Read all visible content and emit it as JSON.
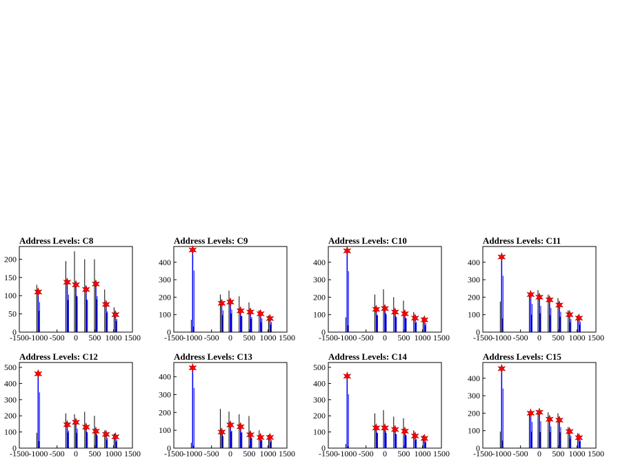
{
  "colors": {
    "frame": "#000000",
    "hist": "#0000ff",
    "overlay": "#000000",
    "marker": "#ff0000",
    "marker_edge": "#aa0000"
  },
  "chart_data": [
    {
      "type": "bar",
      "title": "Address Levels: C8",
      "xlim": [
        -1500,
        1500
      ],
      "ylim": [
        0,
        235
      ],
      "xticks": [
        "-1500",
        "-1000",
        "-500",
        "0",
        "500",
        "1000",
        "1500"
      ],
      "yticks": [
        0,
        50,
        100,
        150,
        200
      ],
      "grid": false,
      "peaks": [
        {
          "x": -1000,
          "y": 110
        },
        {
          "x": -230,
          "y": 137
        },
        {
          "x": 0,
          "y": 130
        },
        {
          "x": 270,
          "y": 117
        },
        {
          "x": 530,
          "y": 132
        },
        {
          "x": 800,
          "y": 76
        },
        {
          "x": 1050,
          "y": 48
        }
      ],
      "overlay_lines": [
        {
          "x": -1000,
          "y": 130
        },
        {
          "x": -230,
          "y": 195
        },
        {
          "x": 0,
          "y": 222
        },
        {
          "x": 270,
          "y": 200
        },
        {
          "x": 530,
          "y": 200
        },
        {
          "x": 800,
          "y": 117
        },
        {
          "x": 1050,
          "y": 68
        }
      ]
    },
    {
      "type": "bar",
      "title": "Address Levels: C9",
      "xlim": [
        -1500,
        1500
      ],
      "ylim": [
        0,
        490
      ],
      "xticks": [
        "-1500",
        "-1000",
        "-500",
        "0",
        "500",
        "1000",
        "1500"
      ],
      "yticks": [
        0,
        100,
        200,
        300,
        400
      ],
      "grid": false,
      "peaks": [
        {
          "x": -1000,
          "y": 470
        },
        {
          "x": -230,
          "y": 165
        },
        {
          "x": 0,
          "y": 172
        },
        {
          "x": 270,
          "y": 122
        },
        {
          "x": 530,
          "y": 115
        },
        {
          "x": 800,
          "y": 105
        },
        {
          "x": 1050,
          "y": 78
        }
      ],
      "overlay_lines": [
        {
          "x": -1000,
          "y": 70
        },
        {
          "x": -230,
          "y": 215
        },
        {
          "x": 0,
          "y": 238
        },
        {
          "x": 270,
          "y": 205
        },
        {
          "x": 530,
          "y": 170
        },
        {
          "x": 800,
          "y": 125
        },
        {
          "x": 1050,
          "y": 95
        }
      ]
    },
    {
      "type": "bar",
      "title": "Address Levels: C10",
      "xlim": [
        -1500,
        1500
      ],
      "ylim": [
        0,
        490
      ],
      "xticks": [
        "-1500",
        "-1000",
        "-500",
        "0",
        "500",
        "1000",
        "1500"
      ],
      "yticks": [
        0,
        100,
        200,
        300,
        400
      ],
      "grid": false,
      "peaks": [
        {
          "x": -1000,
          "y": 465
        },
        {
          "x": -230,
          "y": 130
        },
        {
          "x": 0,
          "y": 135
        },
        {
          "x": 270,
          "y": 115
        },
        {
          "x": 530,
          "y": 105
        },
        {
          "x": 800,
          "y": 80
        },
        {
          "x": 1050,
          "y": 70
        }
      ],
      "overlay_lines": [
        {
          "x": -1000,
          "y": 85
        },
        {
          "x": -230,
          "y": 215
        },
        {
          "x": 0,
          "y": 245
        },
        {
          "x": 270,
          "y": 200
        },
        {
          "x": 530,
          "y": 180
        },
        {
          "x": 800,
          "y": 115
        },
        {
          "x": 1050,
          "y": 85
        }
      ]
    },
    {
      "type": "bar",
      "title": "Address Levels: C11",
      "xlim": [
        -1500,
        1500
      ],
      "ylim": [
        0,
        490
      ],
      "xticks": [
        "-1500",
        "-1000",
        "-500",
        "0",
        "500",
        "1000",
        "1500"
      ],
      "yticks": [
        0,
        100,
        200,
        300,
        400
      ],
      "grid": false,
      "peaks": [
        {
          "x": -1000,
          "y": 430
        },
        {
          "x": -230,
          "y": 215
        },
        {
          "x": 0,
          "y": 200
        },
        {
          "x": 270,
          "y": 185
        },
        {
          "x": 530,
          "y": 155
        },
        {
          "x": 800,
          "y": 100
        },
        {
          "x": 1050,
          "y": 80
        }
      ],
      "overlay_lines": [
        {
          "x": -1000,
          "y": 175
        },
        {
          "x": -230,
          "y": 220
        },
        {
          "x": 0,
          "y": 240
        },
        {
          "x": 270,
          "y": 215
        },
        {
          "x": 530,
          "y": 195
        },
        {
          "x": 800,
          "y": 125
        },
        {
          "x": 1050,
          "y": 95
        }
      ]
    },
    {
      "type": "bar",
      "title": "Address Levels: C12",
      "xlim": [
        -1500,
        1500
      ],
      "ylim": [
        0,
        530
      ],
      "xticks": [
        "-1500",
        "-1000",
        "-500",
        "0",
        "500",
        "1000",
        "1500"
      ],
      "yticks": [
        0,
        100,
        200,
        300,
        400,
        500
      ],
      "grid": false,
      "peaks": [
        {
          "x": -1000,
          "y": 460
        },
        {
          "x": -230,
          "y": 145
        },
        {
          "x": 0,
          "y": 160
        },
        {
          "x": 270,
          "y": 130
        },
        {
          "x": 530,
          "y": 105
        },
        {
          "x": 800,
          "y": 85
        },
        {
          "x": 1050,
          "y": 70
        }
      ],
      "overlay_lines": [
        {
          "x": -1000,
          "y": 95
        },
        {
          "x": -230,
          "y": 215
        },
        {
          "x": 0,
          "y": 210
        },
        {
          "x": 270,
          "y": 225
        },
        {
          "x": 530,
          "y": 200
        },
        {
          "x": 800,
          "y": 110
        },
        {
          "x": 1050,
          "y": 90
        }
      ]
    },
    {
      "type": "bar",
      "title": "Address Levels: C13",
      "xlim": [
        -1500,
        1500
      ],
      "ylim": [
        0,
        480
      ],
      "xticks": [
        "-1500",
        "-1000",
        "-500",
        "0",
        "500",
        "1000",
        "1500"
      ],
      "yticks": [
        0,
        100,
        200,
        300,
        400
      ],
      "grid": false,
      "peaks": [
        {
          "x": -1000,
          "y": 450
        },
        {
          "x": -230,
          "y": 90
        },
        {
          "x": 0,
          "y": 130
        },
        {
          "x": 270,
          "y": 120
        },
        {
          "x": 530,
          "y": 75
        },
        {
          "x": 800,
          "y": 60
        },
        {
          "x": 1050,
          "y": 60
        }
      ],
      "overlay_lines": [
        {
          "x": -1000,
          "y": 30
        },
        {
          "x": -230,
          "y": 220
        },
        {
          "x": 0,
          "y": 205
        },
        {
          "x": 270,
          "y": 190
        },
        {
          "x": 530,
          "y": 180
        },
        {
          "x": 800,
          "y": 100
        },
        {
          "x": 1050,
          "y": 75
        }
      ]
    },
    {
      "type": "bar",
      "title": "Address Levels: C14",
      "xlim": [
        -1500,
        1500
      ],
      "ylim": [
        0,
        530
      ],
      "xticks": [
        "-1500",
        "-1000",
        "-500",
        "0",
        "500",
        "1000",
        "1500"
      ],
      "yticks": [
        0,
        100,
        200,
        300,
        400,
        500
      ],
      "grid": false,
      "peaks": [
        {
          "x": -1000,
          "y": 445
        },
        {
          "x": -230,
          "y": 125
        },
        {
          "x": 0,
          "y": 125
        },
        {
          "x": 270,
          "y": 115
        },
        {
          "x": 530,
          "y": 105
        },
        {
          "x": 800,
          "y": 75
        },
        {
          "x": 1050,
          "y": 60
        }
      ],
      "overlay_lines": [
        {
          "x": -1000,
          "y": 25
        },
        {
          "x": -230,
          "y": 215
        },
        {
          "x": 0,
          "y": 235
        },
        {
          "x": 270,
          "y": 195
        },
        {
          "x": 530,
          "y": 185
        },
        {
          "x": 800,
          "y": 110
        },
        {
          "x": 1050,
          "y": 80
        }
      ]
    },
    {
      "type": "bar",
      "title": "Address Levels: C15",
      "xlim": [
        -1500,
        1500
      ],
      "ylim": [
        0,
        490
      ],
      "xticks": [
        "-1500",
        "-1000",
        "-500",
        "0",
        "500",
        "1000",
        "1500"
      ],
      "yticks": [
        0,
        100,
        200,
        300,
        400
      ],
      "grid": false,
      "peaks": [
        {
          "x": -1000,
          "y": 455
        },
        {
          "x": -230,
          "y": 200
        },
        {
          "x": 0,
          "y": 205
        },
        {
          "x": 270,
          "y": 165
        },
        {
          "x": 530,
          "y": 160
        },
        {
          "x": 800,
          "y": 95
        },
        {
          "x": 1050,
          "y": 60
        }
      ],
      "overlay_lines": [
        {
          "x": -1000,
          "y": 95
        },
        {
          "x": -230,
          "y": 210
        },
        {
          "x": 0,
          "y": 205
        },
        {
          "x": 270,
          "y": 205
        },
        {
          "x": 530,
          "y": 200
        },
        {
          "x": 800,
          "y": 120
        },
        {
          "x": 1050,
          "y": 85
        }
      ]
    }
  ]
}
